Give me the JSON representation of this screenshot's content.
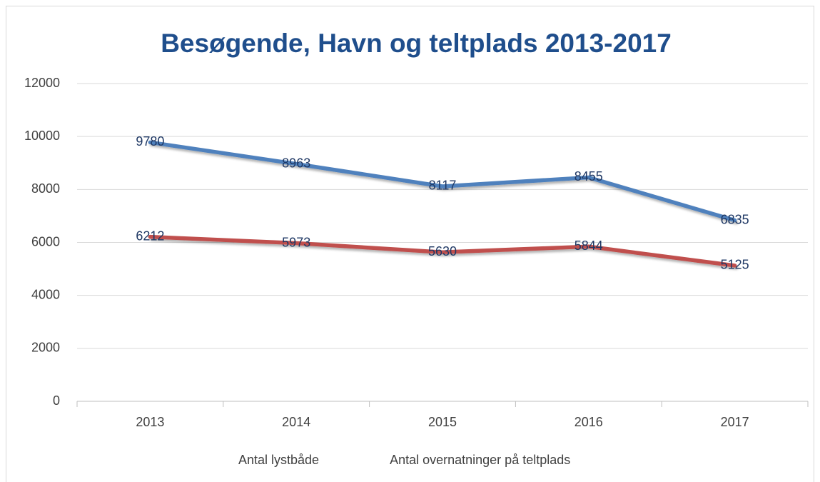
{
  "chart_data": {
    "type": "line",
    "title": "Besøgende, Havn og teltplads 2013-2017",
    "categories": [
      "2013",
      "2014",
      "2015",
      "2016",
      "2017"
    ],
    "series": [
      {
        "name": "Antal lystbåde",
        "color": "#4f81bd",
        "values": [
          9780,
          8963,
          8117,
          8455,
          6835
        ]
      },
      {
        "name": "Antal overnatninger på teltplads",
        "color": "#c0504d",
        "values": [
          6212,
          5973,
          5630,
          5844,
          5125
        ]
      }
    ],
    "ylim": [
      0,
      12000
    ],
    "yticks": [
      0,
      2000,
      4000,
      6000,
      8000,
      10000,
      12000
    ],
    "grid": true,
    "legend": "bottom"
  }
}
